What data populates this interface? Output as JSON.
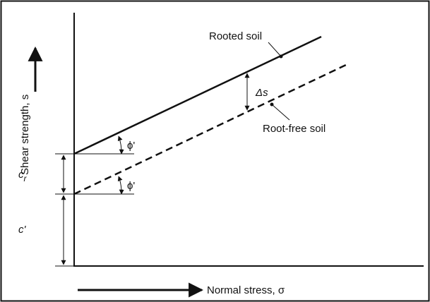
{
  "diagram": {
    "rooted_label": "Rooted soil",
    "root_free_label": "Root-free soil",
    "delta_label": "Δs",
    "angle_upper": "ϕ'",
    "angle_lower": "ϕ'",
    "cr_label": {
      "main": "c",
      "sub": "r"
    },
    "c_prime_label": "c'",
    "y_axis_label": "Shear strength, s",
    "x_axis_label": "Normal stress, σ"
  }
}
